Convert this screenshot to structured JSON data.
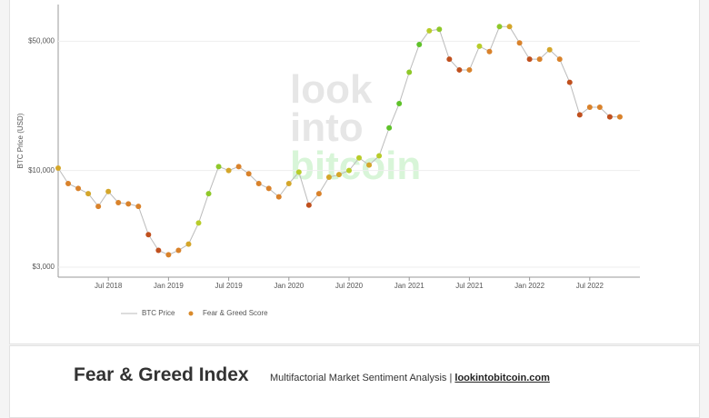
{
  "watermark": [
    "look",
    "into",
    "bitcoin"
  ],
  "footer": {
    "title": "Fear & Greed Index",
    "subtitle": "Multifactorial Market Sentiment Analysis |",
    "link": "lookintobitcoin.com"
  },
  "chart_data": {
    "type": "scatter",
    "y_label": "BTC Price (USD)",
    "log_y": true,
    "grid": true,
    "xlim": [
      "2018-02",
      "2022-12"
    ],
    "xticks": [
      {
        "value": "2018-07",
        "label": "Jul 2018"
      },
      {
        "value": "2019-01",
        "label": "Jan 2019"
      },
      {
        "value": "2019-07",
        "label": "Jul 2019"
      },
      {
        "value": "2020-01",
        "label": "Jan 2020"
      },
      {
        "value": "2020-07",
        "label": "Jul 2020"
      },
      {
        "value": "2021-01",
        "label": "Jan 2021"
      },
      {
        "value": "2021-07",
        "label": "Jul 2021"
      },
      {
        "value": "2022-01",
        "label": "Jan 2022"
      },
      {
        "value": "2022-07",
        "label": "Jul 2022"
      }
    ],
    "ylim": [
      2650,
      79000
    ],
    "yticks": [
      {
        "value": 3000,
        "label": "$3,000"
      },
      {
        "value": 10000,
        "label": "$10,000"
      },
      {
        "value": 50000,
        "label": "$50,000"
      }
    ],
    "x": [
      "2018-02",
      "2018-03",
      "2018-04",
      "2018-05",
      "2018-06",
      "2018-07",
      "2018-08",
      "2018-09",
      "2018-10",
      "2018-11",
      "2018-12",
      "2019-01",
      "2019-02",
      "2019-03",
      "2019-04",
      "2019-05",
      "2019-06",
      "2019-07",
      "2019-08",
      "2019-09",
      "2019-10",
      "2019-11",
      "2019-12",
      "2020-01",
      "2020-02",
      "2020-03",
      "2020-04",
      "2020-05",
      "2020-06",
      "2020-07",
      "2020-08",
      "2020-09",
      "2020-10",
      "2020-11",
      "2020-12",
      "2021-01",
      "2021-02",
      "2021-03",
      "2021-04",
      "2021-05",
      "2021-06",
      "2021-07",
      "2021-08",
      "2021-09",
      "2021-10",
      "2021-11",
      "2021-12",
      "2022-01",
      "2022-02",
      "2022-03",
      "2022-04",
      "2022-05",
      "2022-06",
      "2022-07",
      "2022-08",
      "2022-09",
      "2022-10"
    ],
    "series": [
      {
        "name": "BTC Price",
        "color": "#bbbbbb",
        "values": [
          10300,
          8500,
          8000,
          7500,
          6400,
          7700,
          6700,
          6600,
          6400,
          4500,
          3700,
          3500,
          3700,
          4000,
          5200,
          7500,
          10500,
          10000,
          10500,
          9600,
          8500,
          8000,
          7200,
          8500,
          9800,
          6500,
          7500,
          9200,
          9500,
          10000,
          11700,
          10700,
          12000,
          17000,
          23000,
          34000,
          48000,
          57000,
          58000,
          40000,
          35000,
          35000,
          47000,
          44000,
          60000,
          60000,
          49000,
          40000,
          40000,
          45000,
          40000,
          30000,
          20000,
          22000,
          22000,
          19500,
          19500
        ]
      }
    ],
    "score_legend": "Fear & Greed Score",
    "score_legend_color": "#d98a2b",
    "score_colors": [
      "#d4a62a",
      "#d9822b",
      "#d9822b",
      "#d4a62a",
      "#d9822b",
      "#d4a62a",
      "#d9822b",
      "#d9822b",
      "#d9822b",
      "#c0501e",
      "#c0501e",
      "#d9822b",
      "#d9822b",
      "#d4a62a",
      "#b8cc2a",
      "#8fc82a",
      "#8fc82a",
      "#d4a62a",
      "#d9822b",
      "#d9822b",
      "#d9822b",
      "#d9822b",
      "#d9822b",
      "#d4a62a",
      "#b8cc2a",
      "#c0501e",
      "#d9822b",
      "#d4a62a",
      "#d4a62a",
      "#b8cc2a",
      "#b8cc2a",
      "#d4a62a",
      "#b8cc2a",
      "#5fc22a",
      "#5fc22a",
      "#8fc82a",
      "#5fc22a",
      "#b8cc2a",
      "#8fc82a",
      "#c0501e",
      "#c0501e",
      "#d9822b",
      "#b8cc2a",
      "#d9822b",
      "#8fc82a",
      "#d4a62a",
      "#d9822b",
      "#c0501e",
      "#d9822b",
      "#d4a62a",
      "#d9822b",
      "#c0501e",
      "#c0501e",
      "#d9822b",
      "#d9822b",
      "#c0501e",
      "#d9822b"
    ]
  }
}
